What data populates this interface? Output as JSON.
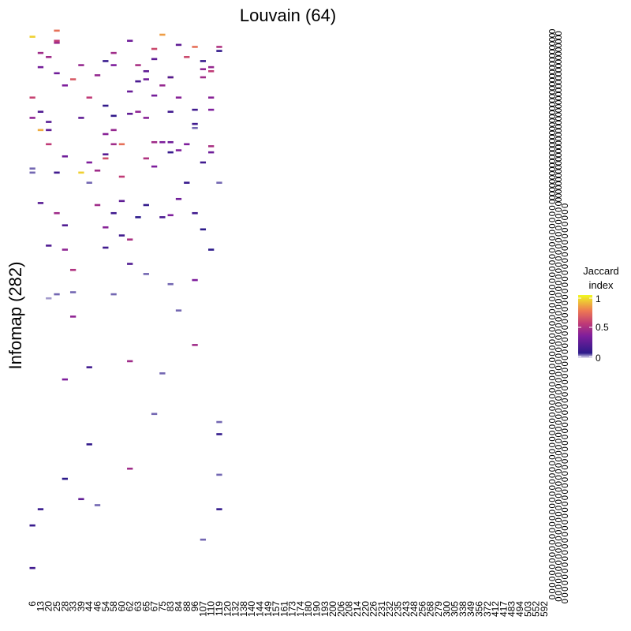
{
  "chart_data": {
    "type": "heatmap",
    "title": "Louvain (64)",
    "xlabel": "Louvain (64)",
    "ylabel": "Infomap (282)",
    "n_rows": 282,
    "row_label_text": "0",
    "x_tick_labels": [
      "6",
      "13",
      "20",
      "25",
      "28",
      "33",
      "39",
      "44",
      "46",
      "54",
      "58",
      "60",
      "62",
      "63",
      "65",
      "67",
      "75",
      "83",
      "84",
      "88",
      "96",
      "107",
      "110",
      "119",
      "120",
      "132",
      "138",
      "140",
      "144",
      "149",
      "157",
      "161",
      "173",
      "174",
      "180",
      "190",
      "193",
      "200",
      "206",
      "208",
      "214",
      "220",
      "226",
      "231",
      "232",
      "235",
      "243",
      "248",
      "256",
      "268",
      "279",
      "300",
      "305",
      "338",
      "349",
      "356",
      "372",
      "412",
      "417",
      "483",
      "494",
      "503",
      "552",
      "592"
    ],
    "legend": {
      "title": "Jaccard\nindex",
      "ticks": [
        "1",
        "0.5",
        "0"
      ],
      "min": 0,
      "max": 1,
      "colormap": "plasma",
      "low_color": "#e9e6f4",
      "high_color": "#f0f921"
    },
    "cells": [
      [
        0,
        4,
        0.92
      ],
      [
        0,
        34,
        0.58
      ],
      [
        0,
        44,
        0.4
      ],
      [
        0,
        69,
        0.05
      ],
      [
        0,
        71,
        0.05
      ],
      [
        0,
        245,
        0.12
      ],
      [
        0,
        266,
        0.15
      ],
      [
        1,
        12,
        0.45
      ],
      [
        1,
        41,
        0.2
      ],
      [
        1,
        19,
        0.32
      ],
      [
        1,
        50,
        0.85
      ],
      [
        1,
        86,
        0.22
      ],
      [
        1,
        237,
        0.12
      ],
      [
        2,
        14,
        0.45
      ],
      [
        2,
        46,
        0.22
      ],
      [
        2,
        50,
        0.25
      ],
      [
        2,
        57,
        0.55
      ],
      [
        2,
        107,
        0.2
      ],
      [
        2,
        133,
        0.03
      ],
      [
        3,
        1,
        0.72
      ],
      [
        3,
        6,
        0.55
      ],
      [
        3,
        7,
        0.45
      ],
      [
        3,
        22,
        0.3
      ],
      [
        3,
        71,
        0.15
      ],
      [
        3,
        91,
        0.45
      ],
      [
        3,
        131,
        0.05
      ],
      [
        4,
        28,
        0.35
      ],
      [
        4,
        63,
        0.3
      ],
      [
        4,
        97,
        0.2
      ],
      [
        4,
        109,
        0.4
      ],
      [
        4,
        173,
        0.35
      ],
      [
        4,
        222,
        0.08
      ],
      [
        5,
        25,
        0.65
      ],
      [
        5,
        119,
        0.5
      ],
      [
        5,
        142,
        0.4
      ],
      [
        5,
        130,
        0.05
      ],
      [
        6,
        18,
        0.42
      ],
      [
        6,
        44,
        0.25
      ],
      [
        6,
        71,
        0.92
      ],
      [
        6,
        232,
        0.25
      ],
      [
        7,
        34,
        0.55
      ],
      [
        7,
        76,
        0.05
      ],
      [
        7,
        66,
        0.35
      ],
      [
        7,
        167,
        0.15
      ],
      [
        7,
        205,
        0.1
      ],
      [
        8,
        23,
        0.42
      ],
      [
        8,
        87,
        0.45
      ],
      [
        8,
        70,
        0.45
      ],
      [
        8,
        235,
        0.05
      ],
      [
        9,
        16,
        0.12
      ],
      [
        9,
        38,
        0.1
      ],
      [
        9,
        52,
        0.38
      ],
      [
        9,
        62,
        0.22
      ],
      [
        9,
        64,
        0.62
      ],
      [
        9,
        98,
        0.38
      ],
      [
        9,
        108,
        0.15
      ],
      [
        10,
        12,
        0.45
      ],
      [
        10,
        18,
        0.35
      ],
      [
        10,
        43,
        0.1
      ],
      [
        10,
        50,
        0.42
      ],
      [
        10,
        57,
        0.45
      ],
      [
        10,
        91,
        0.15
      ],
      [
        10,
        131,
        0.05
      ],
      [
        11,
        57,
        0.72
      ],
      [
        11,
        73,
        0.55
      ],
      [
        11,
        85,
        0.25
      ],
      [
        11,
        102,
        0.15
      ],
      [
        12,
        6,
        0.3
      ],
      [
        12,
        42,
        0.25
      ],
      [
        12,
        31,
        0.28
      ],
      [
        12,
        104,
        0.48
      ],
      [
        12,
        116,
        0.2
      ],
      [
        12,
        164,
        0.45
      ],
      [
        12,
        217,
        0.45
      ],
      [
        13,
        18,
        0.48
      ],
      [
        13,
        26,
        0.18
      ],
      [
        13,
        41,
        0.4
      ],
      [
        13,
        93,
        0.08
      ],
      [
        14,
        25,
        0.3
      ],
      [
        14,
        21,
        0.25
      ],
      [
        14,
        44,
        0.38
      ],
      [
        14,
        64,
        0.5
      ],
      [
        14,
        87,
        0.1
      ],
      [
        14,
        121,
        0.05
      ],
      [
        15,
        10,
        0.6
      ],
      [
        15,
        15,
        0.25
      ],
      [
        15,
        33,
        0.32
      ],
      [
        15,
        56,
        0.45
      ],
      [
        15,
        68,
        0.35
      ],
      [
        15,
        190,
        0.05
      ],
      [
        16,
        3,
        0.82
      ],
      [
        16,
        28,
        0.42
      ],
      [
        16,
        56,
        0.35
      ],
      [
        16,
        93,
        0.18
      ],
      [
        16,
        170,
        0.05
      ],
      [
        17,
        24,
        0.72
      ],
      [
        17,
        24,
        0.2
      ],
      [
        17,
        41,
        0.15
      ],
      [
        17,
        56,
        0.3
      ],
      [
        17,
        61,
        0.12
      ],
      [
        17,
        92,
        0.35
      ],
      [
        17,
        126,
        0.05
      ],
      [
        18,
        8,
        0.25
      ],
      [
        18,
        34,
        0.38
      ],
      [
        18,
        60,
        0.35
      ],
      [
        18,
        84,
        0.3
      ],
      [
        18,
        139,
        0.05
      ],
      [
        19,
        14,
        0.6
      ],
      [
        19,
        57,
        0.35
      ],
      [
        19,
        76,
        0.12
      ],
      [
        20,
        9,
        0.72
      ],
      [
        20,
        40,
        0.15
      ],
      [
        20,
        47,
        0.15
      ],
      [
        20,
        49,
        0.05
      ],
      [
        20,
        91,
        0.15
      ],
      [
        20,
        124,
        0.35
      ],
      [
        20,
        156,
        0.45
      ],
      [
        21,
        16,
        0.12
      ],
      [
        21,
        20,
        0.4
      ],
      [
        21,
        24,
        0.45
      ],
      [
        21,
        66,
        0.15
      ],
      [
        21,
        99,
        0.08
      ],
      [
        21,
        252,
        0.05
      ],
      [
        22,
        19,
        0.42
      ],
      [
        22,
        21,
        0.55
      ],
      [
        22,
        34,
        0.38
      ],
      [
        22,
        40,
        0.35
      ],
      [
        22,
        58,
        0.48
      ],
      [
        22,
        61,
        0.3
      ],
      [
        22,
        109,
        0.08
      ],
      [
        23,
        9,
        0.5
      ],
      [
        23,
        11,
        0.1
      ],
      [
        23,
        76,
        0.05
      ],
      [
        23,
        194,
        0.05
      ],
      [
        23,
        200,
        0.1
      ],
      [
        23,
        220,
        0.05
      ],
      [
        23,
        237,
        0.1
      ]
    ]
  }
}
